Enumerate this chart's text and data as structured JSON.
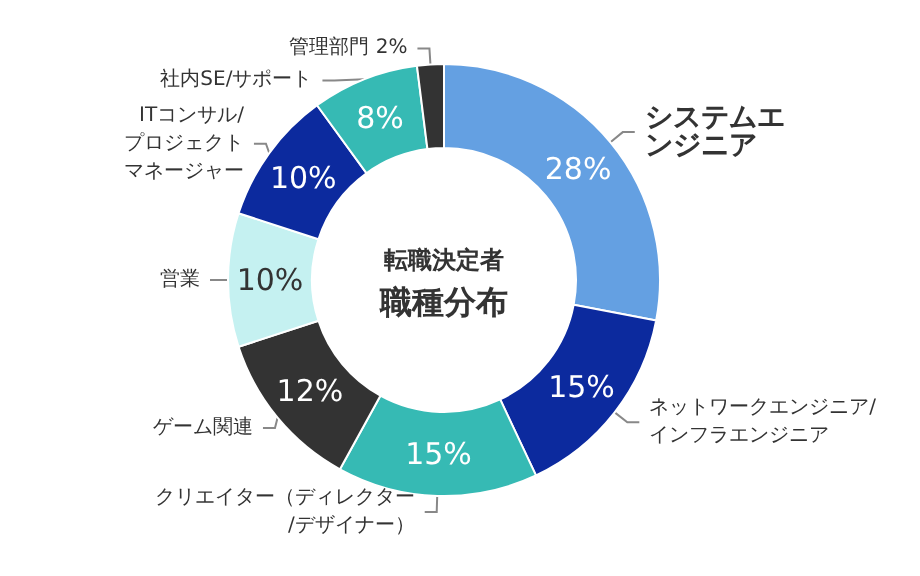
{
  "chart_data": {
    "type": "donut",
    "title": "転職決定者",
    "subtitle": "職種分布",
    "categories": [
      "システムエンジニア",
      "ネットワークエンジニア/インフラエンジニア",
      "クリエイター（ディレクター/デザイナー）",
      "ゲーム関連",
      "営業",
      "ITコンサル/プロジェクトマネージャー",
      "社内SE/サポート",
      "管理部門"
    ],
    "values": [
      28,
      15,
      15,
      12,
      10,
      10,
      8,
      2
    ],
    "value_labels": [
      "28%",
      "15%",
      "15%",
      "12%",
      "10%",
      "10%",
      "8%",
      "2%"
    ],
    "colors": [
      "#64a0e2",
      "#0c2a9e",
      "#36bab4",
      "#333333",
      "#c5f1f1",
      "#0c2a9e",
      "#36bab4",
      "#333333"
    ],
    "legend": false
  }
}
